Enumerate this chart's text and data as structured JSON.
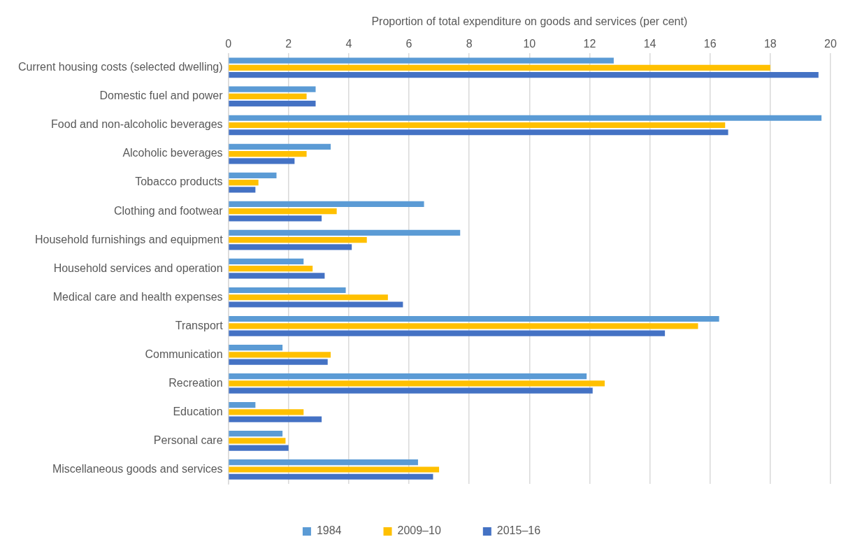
{
  "chart_data": {
    "type": "bar",
    "orientation": "horizontal",
    "xlabel": "Proportion of total expenditure on goods and services (per cent)",
    "categories": [
      "Current housing costs (selected dwelling)",
      "Domestic fuel and power",
      "Food and non-alcoholic beverages",
      "Alcoholic beverages",
      "Tobacco products",
      "Clothing and footwear",
      "Household furnishings and equipment",
      "Household services and operation",
      "Medical care and health expenses",
      "Transport",
      "Communication",
      "Recreation",
      "Education",
      "Personal care",
      "Miscellaneous goods and services"
    ],
    "series": [
      {
        "name": "1984",
        "color": "#5b9bd5",
        "values": [
          12.8,
          2.9,
          19.7,
          3.4,
          1.6,
          6.5,
          7.7,
          2.5,
          3.9,
          16.3,
          1.8,
          11.9,
          0.9,
          1.8,
          6.3
        ]
      },
      {
        "name": "2009–10",
        "color": "#ffc000",
        "values": [
          18.0,
          2.6,
          16.5,
          2.6,
          1.0,
          3.6,
          4.6,
          2.8,
          5.3,
          15.6,
          3.4,
          12.5,
          2.5,
          1.9,
          7.0
        ]
      },
      {
        "name": "2015–16",
        "color": "#4472c4",
        "values": [
          19.6,
          2.9,
          16.6,
          2.2,
          0.9,
          3.1,
          4.1,
          3.2,
          5.8,
          14.5,
          3.3,
          12.1,
          3.1,
          2.0,
          6.8
        ]
      }
    ],
    "xlim": [
      0,
      20
    ],
    "xticks": [
      0,
      2,
      4,
      6,
      8,
      10,
      12,
      14,
      16,
      18,
      20
    ],
    "grid": "x",
    "legend": "bottom"
  }
}
